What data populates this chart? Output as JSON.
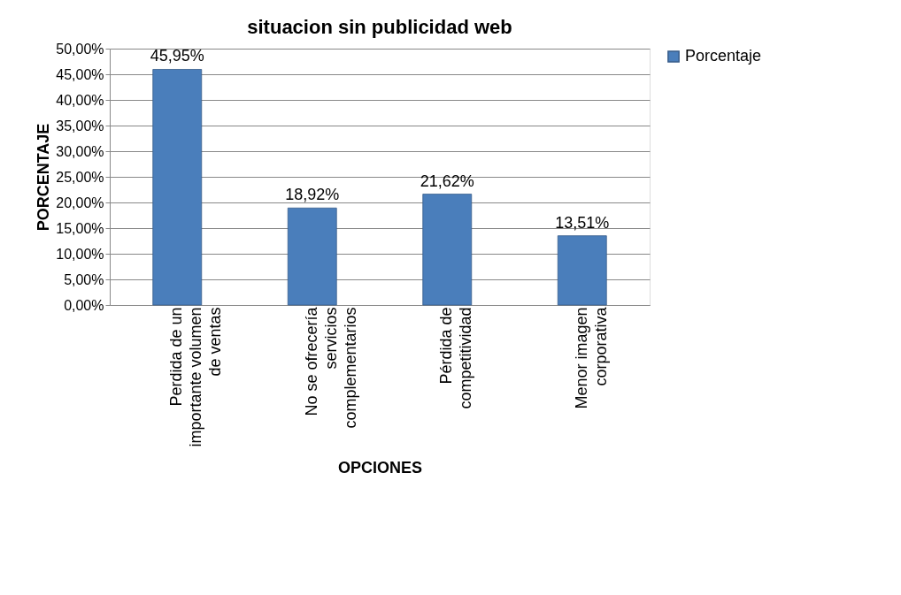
{
  "chart_data": {
    "type": "bar",
    "title": "situacion sin publicidad web",
    "xlabel": "OPCIONES",
    "ylabel": "PORCENTAJE",
    "categories": [
      "Perdida de un importante volumen de ventas",
      "No se ofrecería servicios complementarios",
      "Pérdida de competitividad",
      "Menor imagen corporativa"
    ],
    "series": [
      {
        "name": "Porcentaje",
        "color": "#4a7ebb",
        "values": [
          45.95,
          18.92,
          21.62,
          13.51
        ],
        "value_labels": [
          "45,95%",
          "18,92%",
          "21,62%",
          "13,51%"
        ]
      }
    ],
    "ylim": [
      0,
      50
    ],
    "yticks": [
      {
        "value": 0,
        "label": "0,00%"
      },
      {
        "value": 5,
        "label": "5,00%"
      },
      {
        "value": 10,
        "label": "10,00%"
      },
      {
        "value": 15,
        "label": "15,00%"
      },
      {
        "value": 20,
        "label": "20,00%"
      },
      {
        "value": 25,
        "label": "25,00%"
      },
      {
        "value": 30,
        "label": "30,00%"
      },
      {
        "value": 35,
        "label": "35,00%"
      },
      {
        "value": 40,
        "label": "40,00%"
      },
      {
        "value": 45,
        "label": "45,00%"
      },
      {
        "value": 50,
        "label": "50,00%"
      }
    ],
    "grid": "y",
    "legend": "right"
  }
}
